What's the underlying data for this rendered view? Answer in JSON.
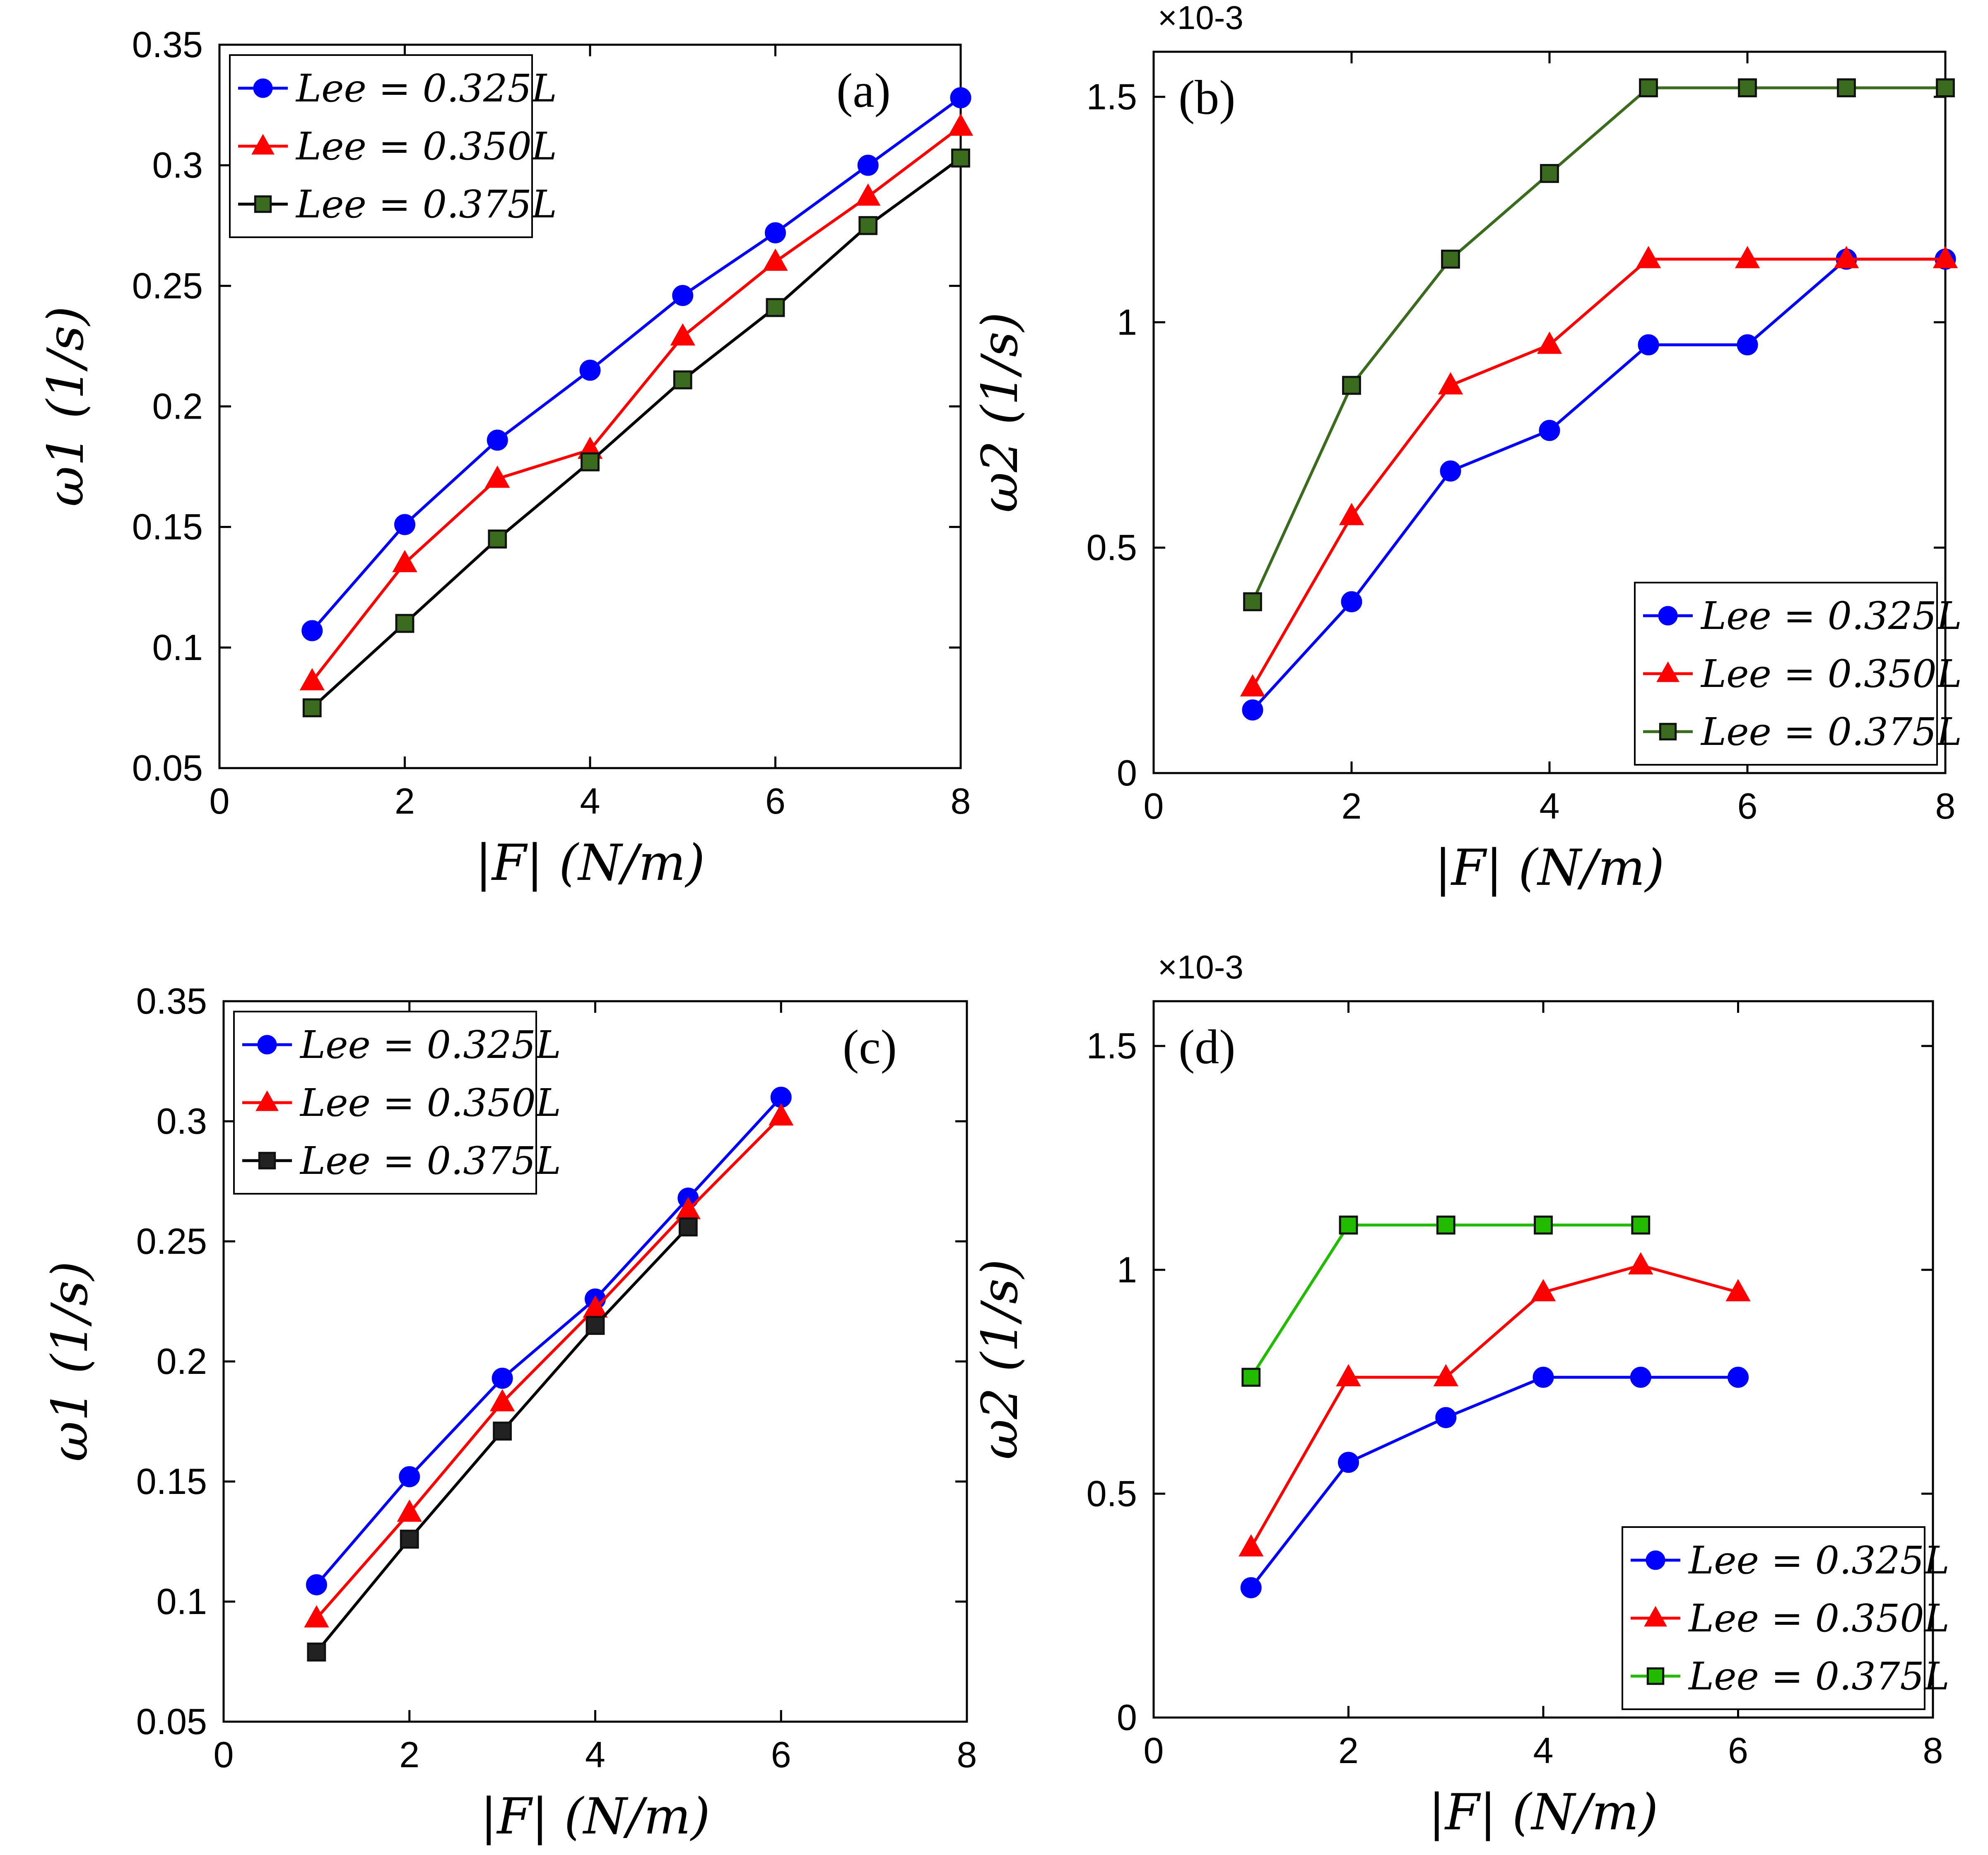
{
  "figure": {
    "colors": {
      "blue": "#0000ff",
      "red": "#ff0000",
      "olive": "#3a6b1e",
      "lime": "#22bb00",
      "marker_edge": "#222222"
    }
  },
  "chart_data": [
    {
      "type": "line",
      "panel_label": "(a)",
      "xlabel": "|F| (N/m)",
      "ylabel": "ω1 (1/s)",
      "xlim": [
        0,
        8
      ],
      "ylim": [
        0.05,
        0.35
      ],
      "xticks": [
        "0",
        "2",
        "4",
        "6",
        "8"
      ],
      "yticks": [
        "0.05",
        "0.1",
        "0.15",
        "0.2",
        "0.25",
        "0.3",
        "0.35"
      ],
      "exponent": "",
      "legend_position": "top-left",
      "series": [
        {
          "name": "Lee = 0.325L",
          "marker": "circle",
          "color": "#0000ff",
          "x": [
            1,
            2,
            3,
            4,
            5,
            6,
            7,
            8
          ],
          "y": [
            0.107,
            0.151,
            0.186,
            0.215,
            0.246,
            0.272,
            0.3,
            0.328
          ]
        },
        {
          "name": "Lee = 0.350L",
          "marker": "triangle",
          "color": "#ff0000",
          "x": [
            1,
            2,
            3,
            4,
            5,
            6,
            7,
            8
          ],
          "y": [
            0.086,
            0.135,
            0.17,
            0.182,
            0.229,
            0.26,
            0.287,
            0.316
          ]
        },
        {
          "name": "Lee = 0.375L",
          "marker": "square",
          "color": "#3a6b1e",
          "line_color": "#000000",
          "x": [
            1,
            2,
            3,
            4,
            5,
            6,
            7,
            8
          ],
          "y": [
            0.075,
            0.11,
            0.145,
            0.177,
            0.211,
            0.241,
            0.275,
            0.303
          ]
        }
      ]
    },
    {
      "type": "line",
      "panel_label": "(b)",
      "xlabel": "|F| (N/m)",
      "ylabel": "ω2 (1/s)",
      "xlim": [
        0,
        8
      ],
      "ylim": [
        0,
        1.6
      ],
      "xticks": [
        "0",
        "2",
        "4",
        "6",
        "8"
      ],
      "yticks": [
        "0",
        "0.5",
        "1",
        "1.5"
      ],
      "exponent": "×10-3",
      "legend_position": "bottom-right",
      "series": [
        {
          "name": "Lee = 0.325L",
          "marker": "circle",
          "color": "#0000ff",
          "x": [
            1,
            2,
            3,
            4,
            5,
            6,
            7,
            8
          ],
          "y": [
            0.14,
            0.38,
            0.67,
            0.76,
            0.95,
            0.95,
            1.14,
            1.14
          ]
        },
        {
          "name": "Lee = 0.350L",
          "marker": "triangle",
          "color": "#ff0000",
          "x": [
            1,
            2,
            3,
            4,
            5,
            6,
            7,
            8
          ],
          "y": [
            0.19,
            0.57,
            0.86,
            0.95,
            1.14,
            1.14,
            1.14,
            1.14
          ]
        },
        {
          "name": "Lee = 0.375L",
          "marker": "square",
          "color": "#3a6b1e",
          "x": [
            1,
            2,
            3,
            4,
            5,
            6,
            7,
            8
          ],
          "y": [
            0.38,
            0.86,
            1.14,
            1.33,
            1.52,
            1.52,
            1.52,
            1.52
          ]
        }
      ]
    },
    {
      "type": "line",
      "panel_label": "(c)",
      "xlabel": "|F| (N/m)",
      "ylabel": "ω1 (1/s)",
      "xlim": [
        0,
        8
      ],
      "ylim": [
        0.05,
        0.35
      ],
      "xticks": [
        "0",
        "2",
        "4",
        "6",
        "8"
      ],
      "yticks": [
        "0.05",
        "0.1",
        "0.15",
        "0.2",
        "0.25",
        "0.3",
        "0.35"
      ],
      "exponent": "",
      "legend_position": "top-left",
      "series": [
        {
          "name": "Lee = 0.325L",
          "marker": "circle",
          "color": "#0000ff",
          "x": [
            1,
            2,
            3,
            4,
            5,
            6
          ],
          "y": [
            0.107,
            0.152,
            0.193,
            0.226,
            0.268,
            0.31
          ]
        },
        {
          "name": "Lee = 0.350L",
          "marker": "triangle",
          "color": "#ff0000",
          "x": [
            1,
            2,
            3,
            4,
            5,
            6
          ],
          "y": [
            0.093,
            0.137,
            0.183,
            0.222,
            0.263,
            0.302
          ]
        },
        {
          "name": "Lee = 0.375L",
          "marker": "square",
          "color": "#222222",
          "line_color": "#000000",
          "x": [
            1,
            2,
            3,
            4,
            5
          ],
          "y": [
            0.079,
            0.126,
            0.171,
            0.215,
            0.256
          ]
        }
      ]
    },
    {
      "type": "line",
      "panel_label": "(d)",
      "xlabel": "|F| (N/m)",
      "ylabel": "ω2 (1/s)",
      "xlim": [
        0,
        8
      ],
      "ylim": [
        0,
        1.6
      ],
      "xticks": [
        "0",
        "2",
        "4",
        "6",
        "8"
      ],
      "yticks": [
        "0",
        "0.5",
        "1",
        "1.5"
      ],
      "exponent": "×10-3",
      "legend_position": "bottom-right",
      "series": [
        {
          "name": "Lee = 0.325L",
          "marker": "circle",
          "color": "#0000ff",
          "x": [
            1,
            2,
            3,
            4,
            5,
            6
          ],
          "y": [
            0.29,
            0.57,
            0.67,
            0.76,
            0.76,
            0.76
          ]
        },
        {
          "name": "Lee = 0.350L",
          "marker": "triangle",
          "color": "#ff0000",
          "x": [
            1,
            2,
            3,
            4,
            5,
            6
          ],
          "y": [
            0.38,
            0.76,
            0.76,
            0.95,
            1.01,
            0.95
          ]
        },
        {
          "name": "Lee = 0.375L",
          "marker": "square",
          "color": "#22bb00",
          "x": [
            1,
            2,
            3,
            4,
            5
          ],
          "y": [
            0.76,
            1.1,
            1.1,
            1.1,
            1.1
          ]
        }
      ]
    }
  ]
}
